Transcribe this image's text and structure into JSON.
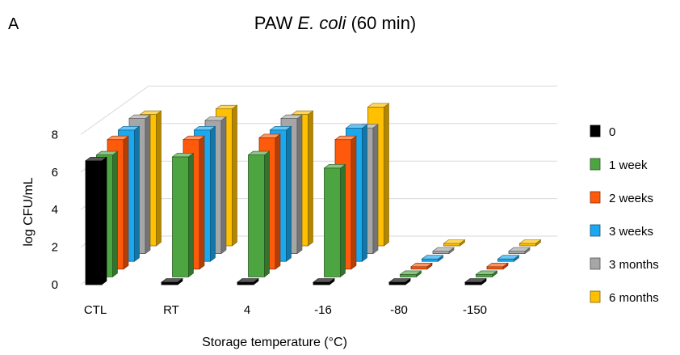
{
  "panel_label": "A",
  "chart_data": {
    "type": "bar",
    "title_prefix": "PAW ",
    "title_italic": "E. coli",
    "title_suffix": " (60 min)",
    "xlabel": "Storage temperature (°C)",
    "ylabel": "log CFU/mL",
    "ylim": [
      0,
      8
    ],
    "yticks": [
      0,
      2,
      4,
      6,
      8
    ],
    "grid": true,
    "legend_position": "right",
    "categories": [
      "CTL",
      "RT",
      "4",
      "-16",
      "-80",
      "-150"
    ],
    "series": [
      {
        "name": "0",
        "color": "#000000",
        "values": [
          6.6,
          0.0,
          0.0,
          0.0,
          0.0,
          0.0
        ]
      },
      {
        "name": "1 week",
        "color": "#4ca540",
        "values": [
          6.5,
          6.4,
          6.5,
          5.8,
          0.0,
          0.0
        ]
      },
      {
        "name": "2 weeks",
        "color": "#ff5a0c",
        "values": [
          6.9,
          6.9,
          7.0,
          6.9,
          0.0,
          0.0
        ]
      },
      {
        "name": "3 weeks",
        "color": "#1aa8f0",
        "values": [
          7.0,
          7.0,
          7.0,
          7.1,
          0.0,
          0.0
        ]
      },
      {
        "name": "3 months",
        "color": "#a6a6a6",
        "values": [
          7.2,
          7.1,
          7.2,
          6.7,
          0.0,
          0.0
        ]
      },
      {
        "name": "6 months",
        "color": "#ffc000",
        "values": [
          7.0,
          7.3,
          7.0,
          7.4,
          0.0,
          0.0
        ]
      }
    ]
  }
}
